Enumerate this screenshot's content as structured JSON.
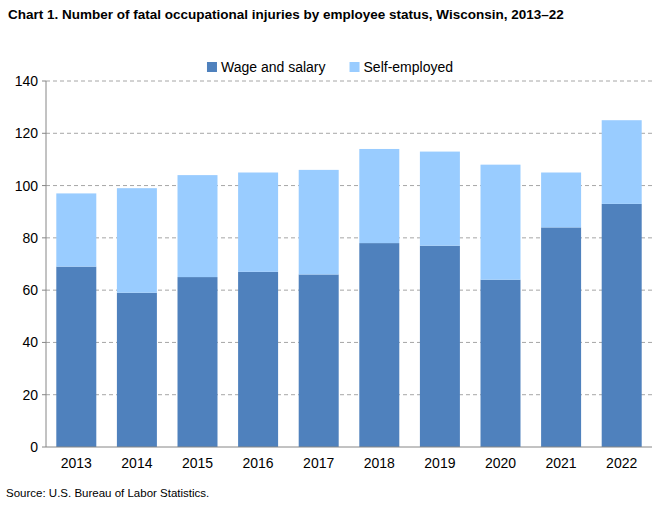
{
  "chart_data": {
    "type": "bar",
    "title": "Chart 1. Number of fatal occupational injuries by employee status, Wisconsin, 2013–22",
    "source": "Source: U.S. Bureau of Labor Statistics.",
    "categories": [
      "2013",
      "2014",
      "2015",
      "2016",
      "2017",
      "2018",
      "2019",
      "2020",
      "2021",
      "2022"
    ],
    "series": [
      {
        "name": "Wage and salary",
        "color": "#4f81bd",
        "values": [
          69,
          59,
          65,
          67,
          66,
          78,
          77,
          64,
          84,
          93
        ]
      },
      {
        "name": "Self-employed",
        "color": "#99ccff",
        "values": [
          28,
          40,
          39,
          38,
          40,
          36,
          36,
          44,
          21,
          32
        ]
      }
    ],
    "stacked": true,
    "ylim": [
      0,
      140
    ],
    "yticks": [
      0,
      20,
      40,
      60,
      80,
      100,
      120,
      140
    ],
    "grid": true,
    "legend": "top"
  }
}
